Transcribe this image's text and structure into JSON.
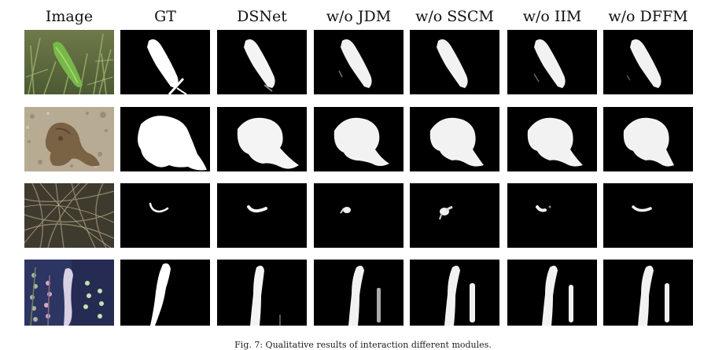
{
  "figure": {
    "column_headers": [
      "Image",
      "GT",
      "DSNet",
      "w/o JDM",
      "w/o SSCM",
      "w/o IIM",
      "w/o DFFM"
    ],
    "caption": "Fig. 7: Qualitative results of interaction different modules.",
    "rows": [
      {
        "cells": [
          {
            "kind": "photo",
            "desc": "green-leaf-fish"
          },
          {
            "kind": "mask"
          },
          {
            "kind": "mask"
          },
          {
            "kind": "mask"
          },
          {
            "kind": "mask"
          },
          {
            "kind": "mask"
          },
          {
            "kind": "mask"
          }
        ]
      },
      {
        "cells": [
          {
            "kind": "photo",
            "desc": "octopus-on-sand"
          },
          {
            "kind": "mask"
          },
          {
            "kind": "mask"
          },
          {
            "kind": "mask"
          },
          {
            "kind": "mask"
          },
          {
            "kind": "mask"
          },
          {
            "kind": "mask"
          }
        ]
      },
      {
        "cells": [
          {
            "kind": "photo",
            "desc": "seagrass-pipefish"
          },
          {
            "kind": "mask"
          },
          {
            "kind": "mask"
          },
          {
            "kind": "mask"
          },
          {
            "kind": "mask"
          },
          {
            "kind": "mask"
          },
          {
            "kind": "mask"
          }
        ]
      },
      {
        "cells": [
          {
            "kind": "photo",
            "desc": "seahorse-on-coral"
          },
          {
            "kind": "mask"
          },
          {
            "kind": "mask"
          },
          {
            "kind": "mask"
          },
          {
            "kind": "mask"
          },
          {
            "kind": "mask"
          },
          {
            "kind": "mask"
          }
        ]
      }
    ]
  }
}
